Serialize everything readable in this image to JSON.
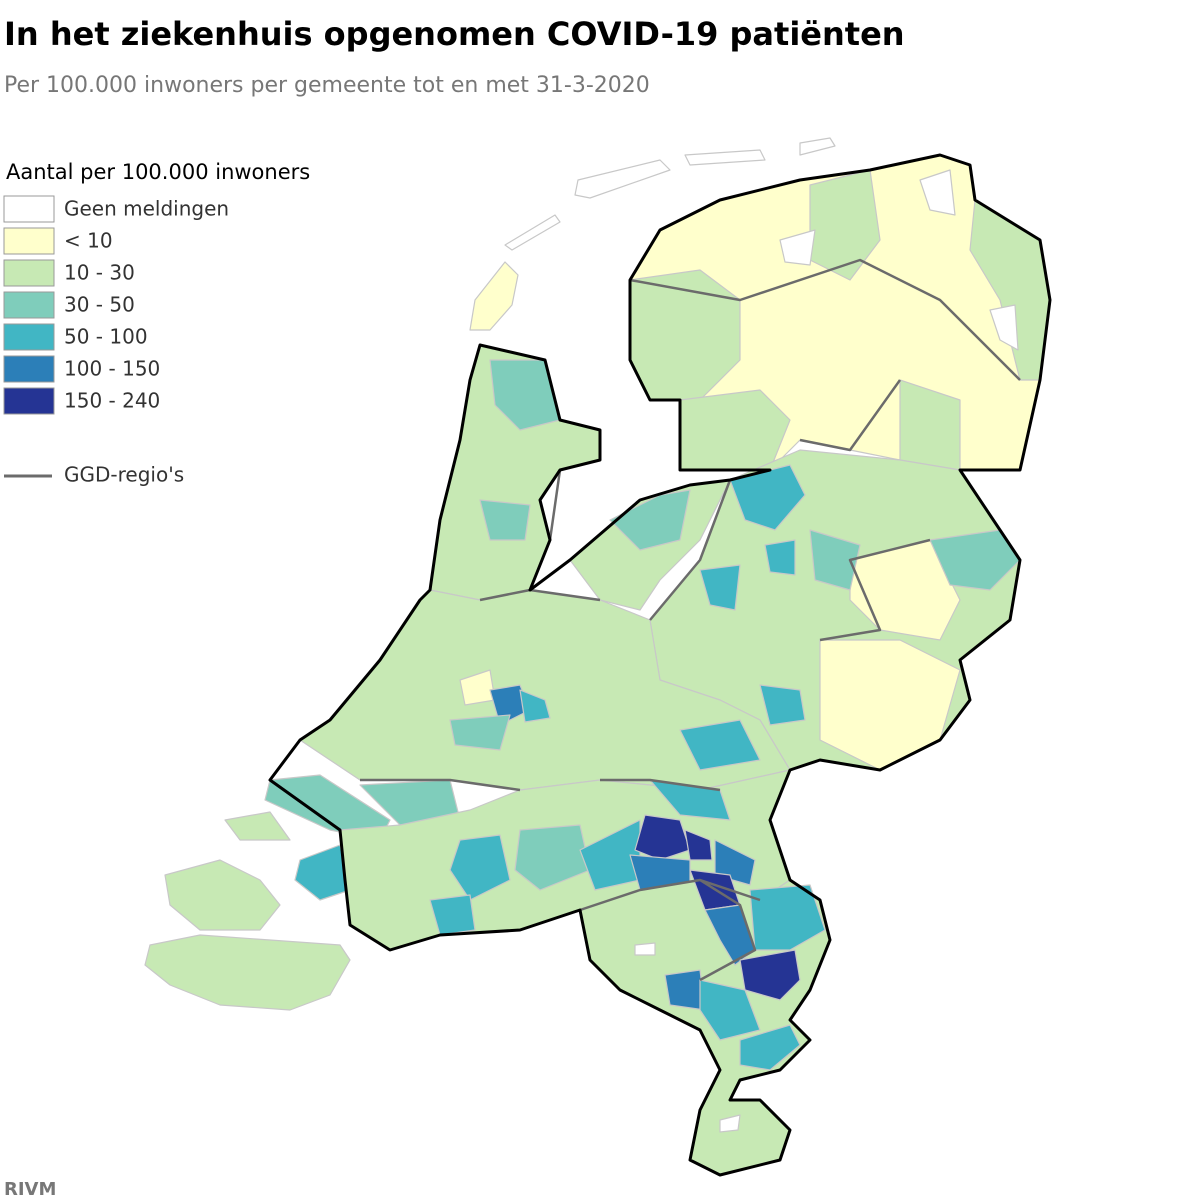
{
  "header": {
    "title": "In het ziekenhuis opgenomen COVID-19 patiënten",
    "subtitle": "Per 100.000 inwoners per gemeente tot en met 31-3-2020"
  },
  "legend": {
    "title": "Aantal per 100.000 inwoners",
    "items": [
      {
        "label": "Geen meldingen",
        "color": "#ffffff"
      },
      {
        "label": "< 10",
        "color": "#ffffcc"
      },
      {
        "label": "10 - 30",
        "color": "#c7e9b4"
      },
      {
        "label": "30 - 50",
        "color": "#7fcdbb"
      },
      {
        "label": "50 - 100",
        "color": "#41b6c4"
      },
      {
        "label": "100 - 150",
        "color": "#2c7fb8"
      },
      {
        "label": "150 - 240",
        "color": "#253494"
      }
    ],
    "line_label": "GGD-regio's"
  },
  "source": "RIVM"
}
